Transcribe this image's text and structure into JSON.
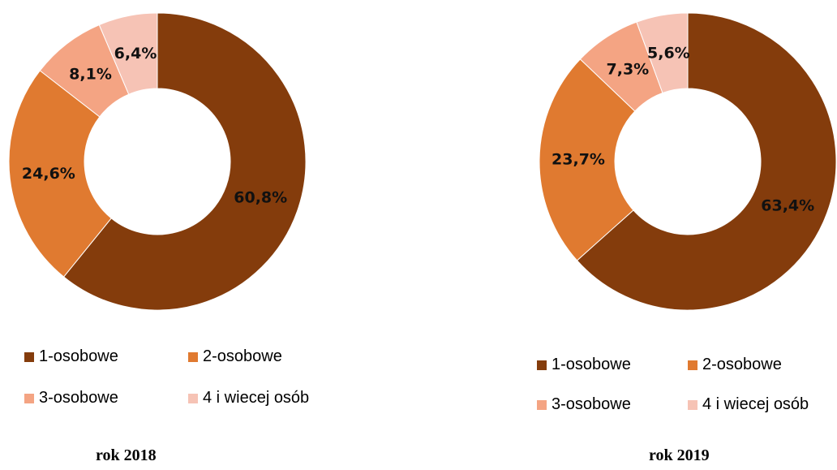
{
  "chart_data": [
    {
      "type": "pie",
      "variant": "donut",
      "title": "rok 2018",
      "categories": [
        "1-osobowe",
        "2-osobowe",
        "3-osobowe",
        "4 i wiecej osób"
      ],
      "values": [
        60.8,
        24.6,
        8.1,
        6.4
      ],
      "value_labels": [
        "60,8%",
        "24,6%",
        "8,1%",
        "6,4%"
      ],
      "colors": [
        "#843C0C",
        "#E07A30",
        "#F4A483",
        "#F6C3B5"
      ],
      "legend_position": "bottom"
    },
    {
      "type": "pie",
      "variant": "donut",
      "title": "rok 2019",
      "categories": [
        "1-osobowe",
        "2-osobowe",
        "3-osobowe",
        "4 i wiecej osób"
      ],
      "values": [
        63.4,
        23.7,
        7.3,
        5.6
      ],
      "value_labels": [
        "63,4%",
        "23,7%",
        "7,3%",
        "5,6%"
      ],
      "colors": [
        "#843C0C",
        "#E07A30",
        "#F4A483",
        "#F6C3B5"
      ],
      "legend_position": "bottom"
    }
  ]
}
